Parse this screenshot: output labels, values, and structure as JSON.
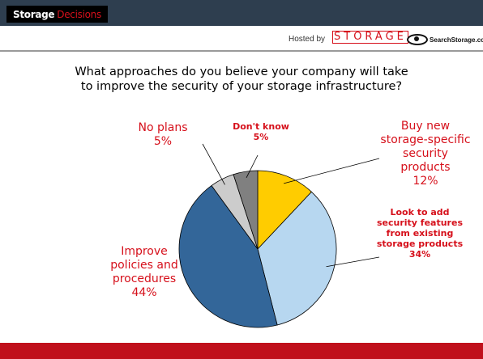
{
  "header": {
    "logo_word1": "Storage",
    "logo_word2": "Decisions",
    "hosted_by": "Hosted by",
    "storage_logo": "STORAGE",
    "searchstorage_logo": "SearchStorage.com"
  },
  "chart_data": {
    "type": "pie",
    "title": "What approaches do you believe your company will take to improve the security of your storage infrastructure?",
    "slices": [
      {
        "label": "Buy new storage-specific security products",
        "value": 12,
        "value_label": "12%",
        "color": "#ffcc00"
      },
      {
        "label": "Look to add security features from existing storage products",
        "value": 34,
        "value_label": "34%",
        "color": "#b7d7f0"
      },
      {
        "label": "Improve policies and procedures",
        "value": 44,
        "value_label": "44%",
        "color": "#336699"
      },
      {
        "label": "No plans",
        "value": 5,
        "value_label": "5%",
        "color": "#cccccc"
      },
      {
        "label": "Don't know",
        "value": 5,
        "value_label": "5%",
        "color": "#808080"
      }
    ]
  }
}
